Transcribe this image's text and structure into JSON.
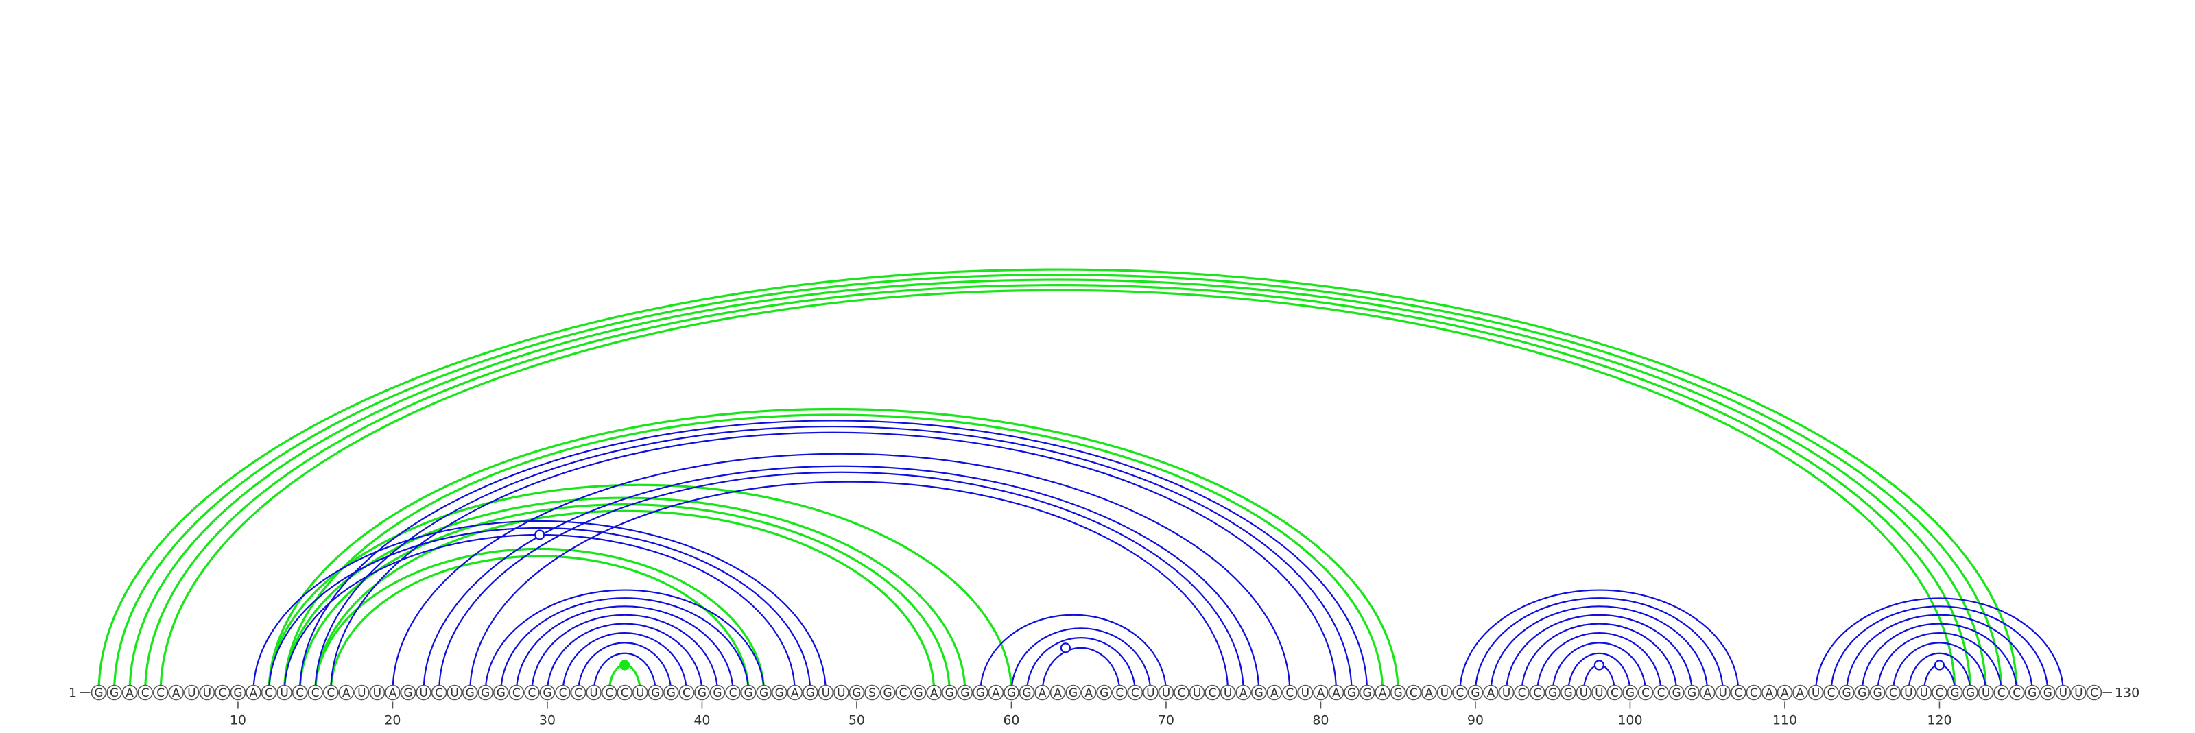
{
  "diagram": {
    "sequence": "GGACCAUUCGACUCCCAUUAGUCUGGGCCGCCUCCUGGCGGCGGGAGUUGSGCGAGGGAGGAAGAGCCUUCUCUAGACUAAGGAGCAUCGAUCCGGUUCGCCGGAUCCAAAUCGGGCUUCGGUCCGGUUC",
    "start_label": "1",
    "end_label": "130",
    "ticks": [
      "10",
      "20",
      "30",
      "40",
      "50",
      "60",
      "70",
      "80",
      "90",
      "100",
      "110",
      "120"
    ],
    "colors": {
      "green": "#19e619",
      "blue": "#1010dd"
    },
    "pairs": [
      {
        "color": "green",
        "i": 1,
        "j": 125
      },
      {
        "color": "green",
        "i": 2,
        "j": 124
      },
      {
        "color": "green",
        "i": 3,
        "j": 123
      },
      {
        "color": "green",
        "i": 4,
        "j": 122
      },
      {
        "color": "green",
        "i": 5,
        "j": 121
      },
      {
        "color": "green",
        "i": 12,
        "j": 60
      },
      {
        "color": "green",
        "i": 13,
        "j": 57
      },
      {
        "color": "green",
        "i": 14,
        "j": 56
      },
      {
        "color": "green",
        "i": 15,
        "j": 55
      },
      {
        "color": "green",
        "i": 12,
        "j": 85
      },
      {
        "color": "green",
        "i": 13,
        "j": 84
      },
      {
        "color": "green",
        "i": 15,
        "j": 44
      },
      {
        "color": "green",
        "i": 16,
        "j": 43
      },
      {
        "color": "green",
        "i": 34,
        "j": 36
      },
      {
        "color": "blue",
        "i": 11,
        "j": 48
      },
      {
        "color": "blue",
        "i": 12,
        "j": 47
      },
      {
        "color": "blue",
        "i": 13,
        "j": 46
      },
      {
        "color": "blue",
        "i": 14,
        "j": 83
      },
      {
        "color": "blue",
        "i": 15,
        "j": 82
      },
      {
        "color": "blue",
        "i": 16,
        "j": 81
      },
      {
        "color": "blue",
        "i": 20,
        "j": 78
      },
      {
        "color": "blue",
        "i": 22,
        "j": 76
      },
      {
        "color": "blue",
        "i": 23,
        "j": 75
      },
      {
        "color": "blue",
        "i": 25,
        "j": 74
      },
      {
        "color": "blue",
        "i": 26,
        "j": 44
      },
      {
        "color": "blue",
        "i": 27,
        "j": 43
      },
      {
        "color": "blue",
        "i": 28,
        "j": 42
      },
      {
        "color": "blue",
        "i": 29,
        "j": 41
      },
      {
        "color": "blue",
        "i": 30,
        "j": 40
      },
      {
        "color": "blue",
        "i": 31,
        "j": 39
      },
      {
        "color": "blue",
        "i": 32,
        "j": 38
      },
      {
        "color": "blue",
        "i": 33,
        "j": 37
      },
      {
        "color": "blue",
        "i": 58,
        "j": 70
      },
      {
        "color": "blue",
        "i": 60,
        "j": 69
      },
      {
        "color": "blue",
        "i": 61,
        "j": 68
      },
      {
        "color": "blue",
        "i": 62,
        "j": 67
      },
      {
        "color": "blue",
        "i": 89,
        "j": 107
      },
      {
        "color": "blue",
        "i": 90,
        "j": 106
      },
      {
        "color": "blue",
        "i": 91,
        "j": 105
      },
      {
        "color": "blue",
        "i": 92,
        "j": 104
      },
      {
        "color": "blue",
        "i": 93,
        "j": 103
      },
      {
        "color": "blue",
        "i": 94,
        "j": 102
      },
      {
        "color": "blue",
        "i": 95,
        "j": 101
      },
      {
        "color": "blue",
        "i": 96,
        "j": 100
      },
      {
        "color": "blue",
        "i": 97,
        "j": 99
      },
      {
        "color": "blue",
        "i": 112,
        "j": 128
      },
      {
        "color": "blue",
        "i": 113,
        "j": 127
      },
      {
        "color": "blue",
        "i": 114,
        "j": 126
      },
      {
        "color": "blue",
        "i": 115,
        "j": 125
      },
      {
        "color": "blue",
        "i": 116,
        "j": 124
      },
      {
        "color": "blue",
        "i": 117,
        "j": 123
      },
      {
        "color": "blue",
        "i": 118,
        "j": 122
      },
      {
        "color": "blue",
        "i": 119,
        "j": 121
      }
    ],
    "markers": [
      {
        "color": "blue",
        "i": 29,
        "j": 30
      },
      {
        "color": "green",
        "i": 35,
        "j": 35
      },
      {
        "color": "blue",
        "i": 63,
        "j": 64
      },
      {
        "color": "blue",
        "i": 98,
        "j": 98
      },
      {
        "color": "blue",
        "i": 120,
        "j": 120
      }
    ]
  }
}
